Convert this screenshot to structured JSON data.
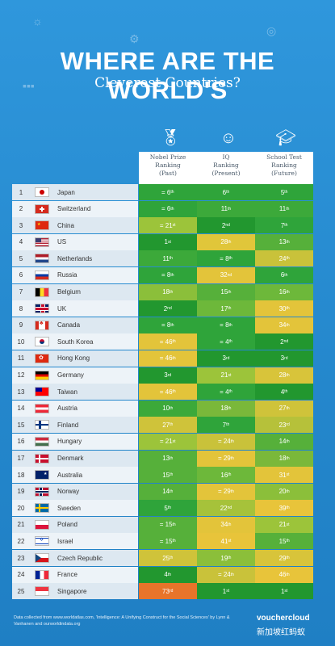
{
  "title": "WHERE ARE THE WORLD'S",
  "subtitle": "Cleverest Countries?",
  "columns": [
    {
      "label": "Nobel Prize",
      "sub1": "Ranking",
      "sub2": "(Past)",
      "icon": "medal-icon"
    },
    {
      "label": "IQ",
      "sub1": "Ranking",
      "sub2": "(Present)",
      "icon": "brain-icon"
    },
    {
      "label": "School Test",
      "sub1": "Ranking",
      "sub2": "(Future)",
      "icon": "graduation-cap-icon"
    }
  ],
  "rows": [
    {
      "rank": "1",
      "country": "Japan",
      "flag": "jp",
      "nobel": "= 6",
      "nobel_sfx": "th",
      "iq": "6",
      "iq_sfx": "th",
      "school": "5",
      "school_sfx": "th",
      "c": [
        "#2fa43a",
        "#2fa43a",
        "#2fa43a"
      ]
    },
    {
      "rank": "2",
      "country": "Switzerland",
      "flag": "ch",
      "nobel": "= 6",
      "nobel_sfx": "th",
      "iq": "11",
      "iq_sfx": "th",
      "school": "11",
      "school_sfx": "th",
      "c": [
        "#2fa43a",
        "#3ca93a",
        "#3ca93a"
      ]
    },
    {
      "rank": "3",
      "country": "China",
      "flag": "cn",
      "nobel": "= 21",
      "nobel_sfx": "st",
      "iq": "2",
      "iq_sfx": "nd",
      "school": "7",
      "school_sfx": "th",
      "c": [
        "#9cc43a",
        "#22972f",
        "#2fa43a"
      ]
    },
    {
      "rank": "4",
      "country": "US",
      "flag": "us",
      "nobel": "1",
      "nobel_sfx": "st",
      "iq": "28",
      "iq_sfx": "th",
      "school": "13",
      "school_sfx": "th",
      "c": [
        "#22972f",
        "#e0c63a",
        "#56b03a"
      ]
    },
    {
      "rank": "5",
      "country": "Netherlands",
      "flag": "nl",
      "nobel": "11",
      "nobel_sfx": "th",
      "iq": "= 8",
      "iq_sfx": "th",
      "school": "24",
      "school_sfx": "th",
      "c": [
        "#3ca93a",
        "#2fa43a",
        "#c9c23a"
      ]
    },
    {
      "rank": "6",
      "country": "Russia",
      "flag": "ru",
      "nobel": "= 8",
      "nobel_sfx": "th",
      "iq": "32",
      "iq_sfx": "nd",
      "school": "6",
      "school_sfx": "th",
      "c": [
        "#2fa43a",
        "#e3c43a",
        "#2fa43a"
      ]
    },
    {
      "rank": "7",
      "country": "Belgium",
      "flag": "be",
      "nobel": "18",
      "nobel_sfx": "th",
      "iq": "15",
      "iq_sfx": "th",
      "school": "16",
      "school_sfx": "th",
      "c": [
        "#8bbf3a",
        "#56b03a",
        "#6db83a"
      ]
    },
    {
      "rank": "8",
      "country": "UK",
      "flag": "gb",
      "nobel": "2",
      "nobel_sfx": "nd",
      "iq": "17",
      "iq_sfx": "th",
      "school": "30",
      "school_sfx": "th",
      "c": [
        "#22972f",
        "#6db83a",
        "#e3c43a"
      ]
    },
    {
      "rank": "9",
      "country": "Canada",
      "flag": "ca",
      "nobel": "= 8",
      "nobel_sfx": "th",
      "iq": "= 8",
      "iq_sfx": "th",
      "school": "34",
      "school_sfx": "th",
      "c": [
        "#2fa43a",
        "#2fa43a",
        "#e3c43a"
      ]
    },
    {
      "rank": "10",
      "country": "South Korea",
      "flag": "kr",
      "nobel": "= 46",
      "nobel_sfx": "th",
      "iq": "= 4",
      "iq_sfx": "th",
      "school": "2",
      "school_sfx": "nd",
      "c": [
        "#e3c43a",
        "#2fa43a",
        "#22972f"
      ]
    },
    {
      "rank": "11",
      "country": "Hong Kong",
      "flag": "hk",
      "nobel": "= 46",
      "nobel_sfx": "th",
      "iq": "3",
      "iq_sfx": "rd",
      "school": "3",
      "school_sfx": "rd",
      "c": [
        "#e3c43a",
        "#22972f",
        "#22972f"
      ]
    },
    {
      "rank": "12",
      "country": "Germany",
      "flag": "de",
      "nobel": "3",
      "nobel_sfx": "rd",
      "iq": "21",
      "iq_sfx": "st",
      "school": "28",
      "school_sfx": "th",
      "c": [
        "#22972f",
        "#9cc43a",
        "#d8c43a"
      ]
    },
    {
      "rank": "13",
      "country": "Taiwan",
      "flag": "tw",
      "nobel": "= 46",
      "nobel_sfx": "th",
      "iq": "= 4",
      "iq_sfx": "th",
      "school": "4",
      "school_sfx": "th",
      "c": [
        "#e3c43a",
        "#2fa43a",
        "#22972f"
      ]
    },
    {
      "rank": "14",
      "country": "Austria",
      "flag": "at",
      "nobel": "10",
      "nobel_sfx": "th",
      "iq": "18",
      "iq_sfx": "th",
      "school": "27",
      "school_sfx": "th",
      "c": [
        "#3ca93a",
        "#7ab83a",
        "#cfc33a"
      ]
    },
    {
      "rank": "15",
      "country": "Finland",
      "flag": "fi",
      "nobel": "27",
      "nobel_sfx": "th",
      "iq": "7",
      "iq_sfx": "th",
      "school": "23",
      "school_sfx": "rd",
      "c": [
        "#cfc33a",
        "#2fa43a",
        "#b6c13a"
      ]
    },
    {
      "rank": "16",
      "country": "Hungary",
      "flag": "hu",
      "nobel": "= 21",
      "nobel_sfx": "st",
      "iq": "= 24",
      "iq_sfx": "th",
      "school": "14",
      "school_sfx": "th",
      "c": [
        "#9cc43a",
        "#c9c23a",
        "#56b03a"
      ]
    },
    {
      "rank": "17",
      "country": "Denmark",
      "flag": "dk",
      "nobel": "13",
      "nobel_sfx": "th",
      "iq": "= 29",
      "iq_sfx": "th",
      "school": "18",
      "school_sfx": "th",
      "c": [
        "#56b03a",
        "#e3c43a",
        "#7ab83a"
      ]
    },
    {
      "rank": "18",
      "country": "Australia",
      "flag": "au",
      "nobel": "15",
      "nobel_sfx": "th",
      "iq": "16",
      "iq_sfx": "th",
      "school": "31",
      "school_sfx": "st",
      "c": [
        "#56b03a",
        "#6db83a",
        "#e3c43a"
      ]
    },
    {
      "rank": "19",
      "country": "Norway",
      "flag": "no",
      "nobel": "14",
      "nobel_sfx": "th",
      "iq": "= 29",
      "iq_sfx": "th",
      "school": "20",
      "school_sfx": "th",
      "c": [
        "#56b03a",
        "#e3c43a",
        "#8bbf3a"
      ]
    },
    {
      "rank": "20",
      "country": "Sweden",
      "flag": "se",
      "nobel": "5",
      "nobel_sfx": "th",
      "iq": "22",
      "iq_sfx": "nd",
      "school": "39",
      "school_sfx": "th",
      "c": [
        "#2fa43a",
        "#a6c23a",
        "#e8c43a"
      ]
    },
    {
      "rank": "21",
      "country": "Poland",
      "flag": "pl",
      "nobel": "= 15",
      "nobel_sfx": "th",
      "iq": "34",
      "iq_sfx": "th",
      "school": "21",
      "school_sfx": "st",
      "c": [
        "#56b03a",
        "#e3c43a",
        "#9cc43a"
      ]
    },
    {
      "rank": "22",
      "country": "Israel",
      "flag": "il",
      "nobel": "= 15",
      "nobel_sfx": "th",
      "iq": "41",
      "iq_sfx": "st",
      "school": "15",
      "school_sfx": "th",
      "c": [
        "#56b03a",
        "#e8c43a",
        "#56b03a"
      ]
    },
    {
      "rank": "23",
      "country": "Czech Republic",
      "flag": "cz",
      "nobel": "25",
      "nobel_sfx": "th",
      "iq": "19",
      "iq_sfx": "th",
      "school": "29",
      "school_sfx": "th",
      "c": [
        "#cfc33a",
        "#8bbf3a",
        "#d8c43a"
      ]
    },
    {
      "rank": "24",
      "country": "France",
      "flag": "fr",
      "nobel": "4",
      "nobel_sfx": "th",
      "iq": "= 24",
      "iq_sfx": "th",
      "school": "46",
      "school_sfx": "th",
      "c": [
        "#22972f",
        "#c9c23a",
        "#e8c43a"
      ]
    },
    {
      "rank": "25",
      "country": "Singapore",
      "flag": "sg",
      "nobel": "73",
      "nobel_sfx": "rd",
      "iq": "1",
      "iq_sfx": "st",
      "school": "1",
      "school_sfx": "st",
      "c": [
        "#e8742a",
        "#22972f",
        "#22972f"
      ]
    }
  ],
  "footer": "Data collected from www.worldatlas.com, 'Intelligence: A Unifying Construct for the Social Sciences' by Lynn & Vanhanen and ourworldindata.org",
  "logo": "vouchercloud",
  "watermark": "新加坡红蚂蚁"
}
